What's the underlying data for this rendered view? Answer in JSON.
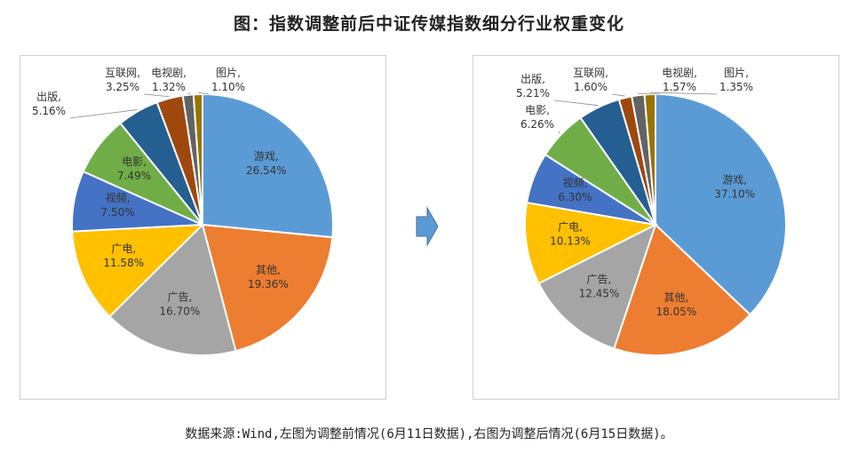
{
  "title": "图：指数调整前后中证传媒指数细分行业权重变化",
  "source_note": "数据来源:Wind,左图为调整前情况(6月11日数据),右图为调整后情况(6月15日数据)。",
  "colors": {
    "游戏": "#5B9BD5",
    "其他": "#ED7D31",
    "广告": "#A5A5A5",
    "广电": "#FFC000",
    "视频": "#4472C4",
    "电影": "#70AD47",
    "出版": "#255E91",
    "互联网": "#9E480E",
    "电视剧": "#636363",
    "图片": "#997300",
    "arrow": "#5B9BD5"
  },
  "chart_data": [
    {
      "type": "pie",
      "title": "",
      "slices": [
        {
          "label": "游戏",
          "value": 26.54,
          "text": "26.54%"
        },
        {
          "label": "其他",
          "value": 19.36,
          "text": "19.36%"
        },
        {
          "label": "广告",
          "value": 16.7,
          "text": "16.70%"
        },
        {
          "label": "广电",
          "value": 11.58,
          "text": "11.58%"
        },
        {
          "label": "视频",
          "value": 7.5,
          "text": "7.50%"
        },
        {
          "label": "电影",
          "value": 7.49,
          "text": "7.49%"
        },
        {
          "label": "出版",
          "value": 5.16,
          "text": "5.16%"
        },
        {
          "label": "互联网",
          "value": 3.25,
          "text": "3.25%"
        },
        {
          "label": "电视剧",
          "value": 1.32,
          "text": "1.32%"
        },
        {
          "label": "图片",
          "value": 1.1,
          "text": "1.10%"
        }
      ]
    },
    {
      "type": "pie",
      "title": "",
      "slices": [
        {
          "label": "游戏",
          "value": 37.1,
          "text": "37.10%"
        },
        {
          "label": "其他",
          "value": 18.05,
          "text": "18.05%"
        },
        {
          "label": "广告",
          "value": 12.45,
          "text": "12.45%"
        },
        {
          "label": "广电",
          "value": 10.13,
          "text": "10.13%"
        },
        {
          "label": "视频",
          "value": 6.3,
          "text": "6.30%"
        },
        {
          "label": "电影",
          "value": 6.26,
          "text": "6.26%"
        },
        {
          "label": "出版",
          "value": 5.21,
          "text": "5.21%"
        },
        {
          "label": "互联网",
          "value": 1.6,
          "text": "1.60%"
        },
        {
          "label": "电视剧",
          "value": 1.57,
          "text": "1.57%"
        },
        {
          "label": "图片",
          "value": 1.35,
          "text": "1.35%"
        }
      ]
    }
  ]
}
